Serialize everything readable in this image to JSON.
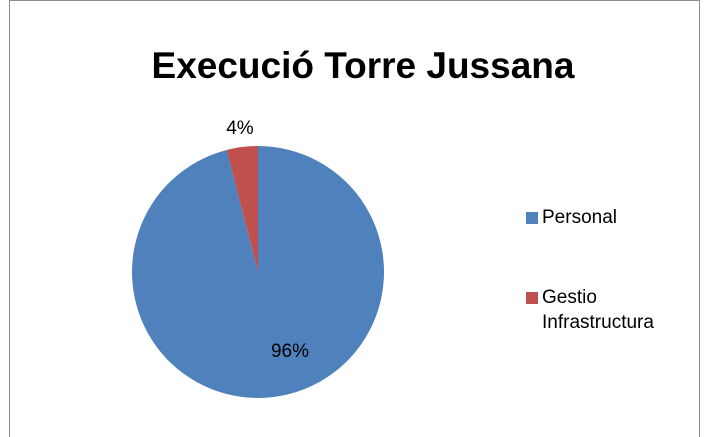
{
  "chart_data": {
    "type": "pie",
    "title": "Execució Torre Jussana",
    "categories": [
      "Personal",
      "Gestio Infrastructura"
    ],
    "values": [
      96,
      4
    ],
    "value_labels": [
      "96%",
      "4%"
    ],
    "colors": [
      "#4f81bd",
      "#c0504d"
    ],
    "legend": "right"
  }
}
